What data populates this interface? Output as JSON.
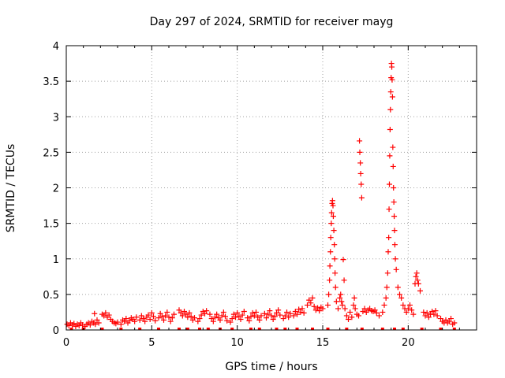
{
  "chart_data": {
    "type": "scatter",
    "title": "Day 297 of 2024, SRMTID for receiver mayg",
    "xlabel": "GPS time / hours",
    "ylabel": "SRMTID / TECUs",
    "xlim": [
      0,
      24
    ],
    "ylim": [
      0,
      4
    ],
    "xticks": [
      0,
      5,
      10,
      15,
      20
    ],
    "xtick_labels": [
      "0",
      "5",
      "10",
      "15",
      "20"
    ],
    "yticks": [
      0,
      0.5,
      1,
      1.5,
      2,
      2.5,
      3,
      3.5,
      4
    ],
    "ytick_labels": [
      "0",
      "0.5",
      "1",
      "1.5",
      "2",
      "2.5",
      "3",
      "3.5",
      "4"
    ],
    "grid": true,
    "marker": "+",
    "color": "#ff0000",
    "series": [
      {
        "name": "SRMTID",
        "points": [
          [
            0.05,
            0.08
          ],
          [
            0.15,
            0.06
          ],
          [
            0.25,
            0.1
          ],
          [
            0.35,
            0.07
          ],
          [
            0.45,
            0.09
          ],
          [
            0.55,
            0.05
          ],
          [
            0.65,
            0.08
          ],
          [
            0.75,
            0.06
          ],
          [
            0.85,
            0.1
          ],
          [
            0.95,
            0.07
          ],
          [
            1.1,
            0.05
          ],
          [
            1.2,
            0.08
          ],
          [
            1.3,
            0.1
          ],
          [
            1.4,
            0.07
          ],
          [
            1.5,
            0.12
          ],
          [
            1.6,
            0.1
          ],
          [
            1.65,
            0.23
          ],
          [
            1.7,
            0.08
          ],
          [
            1.8,
            0.14
          ],
          [
            1.9,
            0.1
          ],
          [
            2.1,
            0.22
          ],
          [
            2.2,
            0.2
          ],
          [
            2.3,
            0.24
          ],
          [
            2.4,
            0.18
          ],
          [
            2.5,
            0.21
          ],
          [
            2.6,
            0.15
          ],
          [
            2.7,
            0.12
          ],
          [
            2.8,
            0.1
          ],
          [
            2.9,
            0.09
          ],
          [
            3.0,
            0.11
          ],
          [
            3.2,
            0.08
          ],
          [
            3.3,
            0.14
          ],
          [
            3.4,
            0.12
          ],
          [
            3.5,
            0.16
          ],
          [
            3.6,
            0.1
          ],
          [
            3.7,
            0.13
          ],
          [
            3.8,
            0.17
          ],
          [
            3.9,
            0.15
          ],
          [
            4.0,
            0.12
          ],
          [
            4.1,
            0.18
          ],
          [
            4.3,
            0.14
          ],
          [
            4.4,
            0.2
          ],
          [
            4.5,
            0.16
          ],
          [
            4.6,
            0.12
          ],
          [
            4.7,
            0.18
          ],
          [
            4.8,
            0.21
          ],
          [
            4.9,
            0.15
          ],
          [
            5.0,
            0.24
          ],
          [
            5.1,
            0.19
          ],
          [
            5.2,
            0.13
          ],
          [
            5.4,
            0.17
          ],
          [
            5.5,
            0.23
          ],
          [
            5.6,
            0.19
          ],
          [
            5.7,
            0.14
          ],
          [
            5.8,
            0.2
          ],
          [
            5.9,
            0.25
          ],
          [
            6.0,
            0.18
          ],
          [
            6.1,
            0.12
          ],
          [
            6.2,
            0.17
          ],
          [
            6.3,
            0.22
          ],
          [
            6.6,
            0.28
          ],
          [
            6.7,
            0.24
          ],
          [
            6.8,
            0.2
          ],
          [
            6.9,
            0.26
          ],
          [
            7.0,
            0.22
          ],
          [
            7.1,
            0.18
          ],
          [
            7.2,
            0.24
          ],
          [
            7.3,
            0.19
          ],
          [
            7.4,
            0.14
          ],
          [
            7.5,
            0.17
          ],
          [
            7.7,
            0.12
          ],
          [
            7.8,
            0.16
          ],
          [
            7.9,
            0.21
          ],
          [
            8.0,
            0.26
          ],
          [
            8.1,
            0.23
          ],
          [
            8.2,
            0.27
          ],
          [
            8.4,
            0.22
          ],
          [
            8.5,
            0.16
          ],
          [
            8.6,
            0.12
          ],
          [
            8.7,
            0.18
          ],
          [
            8.8,
            0.22
          ],
          [
            8.9,
            0.17
          ],
          [
            9.0,
            0.14
          ],
          [
            9.1,
            0.2
          ],
          [
            9.2,
            0.25
          ],
          [
            9.3,
            0.19
          ],
          [
            9.4,
            0.13
          ],
          [
            9.6,
            0.11
          ],
          [
            9.7,
            0.16
          ],
          [
            9.8,
            0.22
          ],
          [
            9.9,
            0.18
          ],
          [
            10.0,
            0.24
          ],
          [
            10.1,
            0.19
          ],
          [
            10.2,
            0.15
          ],
          [
            10.3,
            0.21
          ],
          [
            10.4,
            0.26
          ],
          [
            10.6,
            0.17
          ],
          [
            10.7,
            0.13
          ],
          [
            10.8,
            0.19
          ],
          [
            10.9,
            0.24
          ],
          [
            11.0,
            0.2
          ],
          [
            11.1,
            0.25
          ],
          [
            11.2,
            0.18
          ],
          [
            11.3,
            0.14
          ],
          [
            11.4,
            0.2
          ],
          [
            11.6,
            0.23
          ],
          [
            11.7,
            0.17
          ],
          [
            11.8,
            0.22
          ],
          [
            11.9,
            0.27
          ],
          [
            12.0,
            0.2
          ],
          [
            12.1,
            0.15
          ],
          [
            12.2,
            0.19
          ],
          [
            12.3,
            0.24
          ],
          [
            12.4,
            0.28
          ],
          [
            12.5,
            0.21
          ],
          [
            12.7,
            0.16
          ],
          [
            12.8,
            0.2
          ],
          [
            12.9,
            0.25
          ],
          [
            13.0,
            0.18
          ],
          [
            13.1,
            0.23
          ],
          [
            13.3,
            0.2
          ],
          [
            13.4,
            0.26
          ],
          [
            13.5,
            0.22
          ],
          [
            13.6,
            0.29
          ],
          [
            13.7,
            0.25
          ],
          [
            13.8,
            0.3
          ],
          [
            13.9,
            0.24
          ],
          [
            14.1,
            0.35
          ],
          [
            14.2,
            0.42
          ],
          [
            14.3,
            0.38
          ],
          [
            14.4,
            0.45
          ],
          [
            14.5,
            0.33
          ],
          [
            14.6,
            0.28
          ],
          [
            14.7,
            0.31
          ],
          [
            14.8,
            0.27
          ],
          [
            14.9,
            0.32
          ],
          [
            15.0,
            0.3
          ],
          [
            15.3,
            0.35
          ],
          [
            15.35,
            0.5
          ],
          [
            15.4,
            0.7
          ],
          [
            15.42,
            0.9
          ],
          [
            15.45,
            1.1
          ],
          [
            15.47,
            1.3
          ],
          [
            15.5,
            1.5
          ],
          [
            15.52,
            1.65
          ],
          [
            15.55,
            1.78
          ],
          [
            15.57,
            1.82
          ],
          [
            15.6,
            1.75
          ],
          [
            15.62,
            1.6
          ],
          [
            15.65,
            1.4
          ],
          [
            15.68,
            1.2
          ],
          [
            15.7,
            1.0
          ],
          [
            15.72,
            0.8
          ],
          [
            15.75,
            0.6
          ],
          [
            15.8,
            0.4
          ],
          [
            15.9,
            0.3
          ],
          [
            16.0,
            0.45
          ],
          [
            16.05,
            0.5
          ],
          [
            16.1,
            0.4
          ],
          [
            16.15,
            0.35
          ],
          [
            16.2,
            0.99
          ],
          [
            16.25,
            0.7
          ],
          [
            16.3,
            0.3
          ],
          [
            16.4,
            0.2
          ],
          [
            16.5,
            0.15
          ],
          [
            16.6,
            0.25
          ],
          [
            16.7,
            0.18
          ],
          [
            16.8,
            0.35
          ],
          [
            16.85,
            0.45
          ],
          [
            16.9,
            0.3
          ],
          [
            17.0,
            0.22
          ],
          [
            17.1,
            0.2
          ],
          [
            17.15,
            2.66
          ],
          [
            17.17,
            2.5
          ],
          [
            17.2,
            2.35
          ],
          [
            17.22,
            2.2
          ],
          [
            17.25,
            2.05
          ],
          [
            17.28,
            1.86
          ],
          [
            17.35,
            0.26
          ],
          [
            17.45,
            0.3
          ],
          [
            17.55,
            0.25
          ],
          [
            17.65,
            0.28
          ],
          [
            17.75,
            0.3
          ],
          [
            17.85,
            0.27
          ],
          [
            17.95,
            0.26
          ],
          [
            18.05,
            0.28
          ],
          [
            18.15,
            0.24
          ],
          [
            18.3,
            0.2
          ],
          [
            18.5,
            0.25
          ],
          [
            18.6,
            0.35
          ],
          [
            18.7,
            0.45
          ],
          [
            18.75,
            0.6
          ],
          [
            18.8,
            0.8
          ],
          [
            18.83,
            1.1
          ],
          [
            18.86,
            1.3
          ],
          [
            18.88,
            1.7
          ],
          [
            18.9,
            2.05
          ],
          [
            18.92,
            2.45
          ],
          [
            18.94,
            2.82
          ],
          [
            18.96,
            3.1
          ],
          [
            18.98,
            3.35
          ],
          [
            19.0,
            3.55
          ],
          [
            19.02,
            3.75
          ],
          [
            19.04,
            3.7
          ],
          [
            19.06,
            3.52
          ],
          [
            19.08,
            3.28
          ],
          [
            19.1,
            2.57
          ],
          [
            19.12,
            2.3
          ],
          [
            19.14,
            2.0
          ],
          [
            19.16,
            1.8
          ],
          [
            19.18,
            1.6
          ],
          [
            19.2,
            1.4
          ],
          [
            19.22,
            1.2
          ],
          [
            19.25,
            1.0
          ],
          [
            19.3,
            0.85
          ],
          [
            19.4,
            0.6
          ],
          [
            19.5,
            0.5
          ],
          [
            19.6,
            0.45
          ],
          [
            19.7,
            0.35
          ],
          [
            19.8,
            0.3
          ],
          [
            19.9,
            0.25
          ],
          [
            20.0,
            0.3
          ],
          [
            20.1,
            0.35
          ],
          [
            20.2,
            0.28
          ],
          [
            20.3,
            0.22
          ],
          [
            20.4,
            0.65
          ],
          [
            20.45,
            0.75
          ],
          [
            20.5,
            0.8
          ],
          [
            20.55,
            0.7
          ],
          [
            20.6,
            0.65
          ],
          [
            20.7,
            0.55
          ],
          [
            20.9,
            0.25
          ],
          [
            21.0,
            0.2
          ],
          [
            21.1,
            0.24
          ],
          [
            21.2,
            0.18
          ],
          [
            21.3,
            0.22
          ],
          [
            21.4,
            0.26
          ],
          [
            21.5,
            0.22
          ],
          [
            21.6,
            0.27
          ],
          [
            21.7,
            0.2
          ],
          [
            21.9,
            0.16
          ],
          [
            22.0,
            0.12
          ],
          [
            22.1,
            0.1
          ],
          [
            22.2,
            0.14
          ],
          [
            22.3,
            0.1
          ],
          [
            22.4,
            0.12
          ],
          [
            22.5,
            0.16
          ],
          [
            22.6,
            0.08
          ],
          [
            22.7,
            0.1
          ]
        ]
      }
    ],
    "baseline_marks_x": [
      0.3,
      1.0,
      2.1,
      3.2,
      4.3,
      5.4,
      6.6,
      7.1,
      7.8,
      8.3,
      9.0,
      9.7,
      10.8,
      11.3,
      12.3,
      12.8,
      13.5,
      14.4,
      15.3,
      16.4,
      17.3,
      18.5,
      19.2,
      19.7,
      20.8,
      21.9,
      22.7
    ]
  }
}
